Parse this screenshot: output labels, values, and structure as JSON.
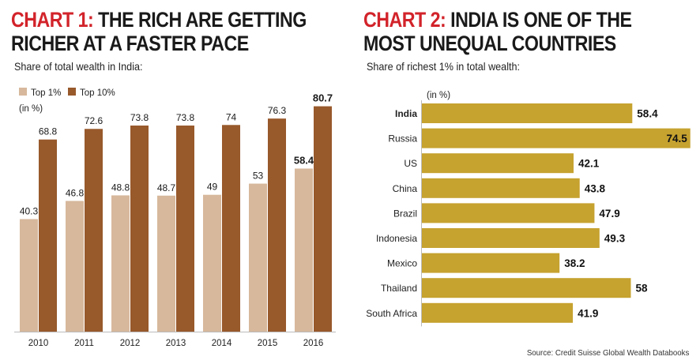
{
  "chart1": {
    "label": "CHART 1:",
    "title_line1": " THE RICH ARE GETTING",
    "title_line2": "RICHER AT A FASTER PACE",
    "subtitle": "Share of total wealth in India:",
    "unit_note": "(in %)"
  },
  "chart2": {
    "label": "CHART 2:",
    "title_line1": " INDIA IS ONE OF THE",
    "title_line2": "MOST UNEQUAL COUNTRIES",
    "subtitle": "Share of richest 1% in total wealth:",
    "unit_note": "(in %)"
  },
  "source": "Source: Credit Suisse Global Wealth Databooks",
  "colors": {
    "accent_red": "#d2232a",
    "top1": "#d7b89c",
    "top10": "#98592b",
    "bar2": "#c6a22f"
  },
  "chart_data": [
    {
      "type": "bar",
      "title": "THE RICH ARE GETTING RICHER AT A FASTER PACE",
      "subtitle": "Share of total wealth in India:",
      "unit": "(in %)",
      "categories": [
        "2010",
        "2011",
        "2012",
        "2013",
        "2014",
        "2015",
        "2016"
      ],
      "series": [
        {
          "name": "Top 1%",
          "values": [
            40.3,
            46.8,
            48.8,
            48.7,
            49,
            53,
            58.4
          ],
          "labels": [
            "40.3",
            "46.8",
            "48.8",
            "48.7",
            "49",
            "53",
            "58.4"
          ]
        },
        {
          "name": "Top 10%",
          "values": [
            68.8,
            72.6,
            73.8,
            73.8,
            74,
            76.3,
            80.7
          ],
          "labels": [
            "68.8",
            "72.6",
            "73.8",
            "73.8",
            "74",
            "76.3",
            "80.7"
          ]
        }
      ],
      "ylim": [
        0,
        82
      ],
      "legend": "top-left",
      "grid": false
    },
    {
      "type": "bar",
      "orientation": "horizontal",
      "title": "INDIA IS ONE OF THE MOST UNEQUAL COUNTRIES",
      "subtitle": "Share of richest 1% in total wealth:",
      "unit": "(in %)",
      "categories": [
        "India",
        "Russia",
        "US",
        "China",
        "Brazil",
        "Indonesia",
        "Mexico",
        "Thailand",
        "South Africa"
      ],
      "values": [
        58.4,
        74.5,
        42.1,
        43.8,
        47.9,
        49.3,
        38.2,
        58,
        41.9
      ],
      "labels": [
        "58.4",
        "74.5",
        "42.1",
        "43.8",
        "47.9",
        "49.3",
        "38.2",
        "58",
        "41.9"
      ],
      "xlim": [
        0,
        75
      ],
      "grid": false
    }
  ]
}
